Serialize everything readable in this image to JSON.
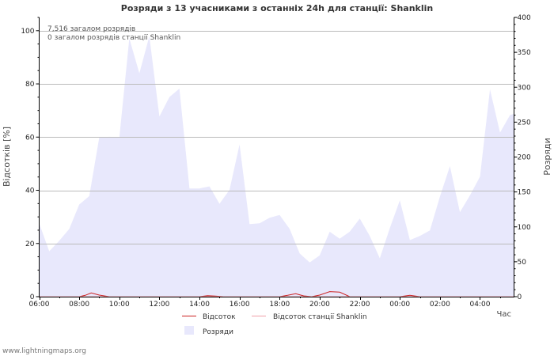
{
  "chart_data": {
    "type": "area",
    "title": "Розряди з 13 учасниками з останніх 24h для станції: Shanklin",
    "info_lines": [
      "7,516 загалом розрядів",
      "0 загалом розрядів станції Shanklin"
    ],
    "xlabel": "Час",
    "ylabel_left": "Відсотків   [%]",
    "ylabel_right": "Розряди",
    "x_ticks": [
      "06:00",
      "08:00",
      "10:00",
      "12:00",
      "14:00",
      "16:00",
      "18:00",
      "20:00",
      "22:00",
      "00:00",
      "02:00",
      "04:00"
    ],
    "x_range_hours": [
      0,
      23.7
    ],
    "ylim_left": [
      0,
      105
    ],
    "yticks_left": [
      0,
      20,
      40,
      60,
      80,
      100
    ],
    "ylim_right": [
      0,
      400
    ],
    "yticks_right": [
      0,
      50,
      100,
      150,
      200,
      250,
      300,
      350,
      400
    ],
    "legend": [
      "Відсоток",
      "Відсоток станції Shanklin",
      "Розряди"
    ],
    "colors": {
      "strikes_fill": "#e8e8fc",
      "percent_line": "#cc2222",
      "station_line": "#f0a0a8",
      "grid": "#bbbbbb",
      "axis": "#000000"
    },
    "series": [
      {
        "name": "Розряди",
        "axis": "right",
        "x": [
          0,
          0.5,
          1,
          1.5,
          2,
          2.5,
          3,
          3.5,
          4,
          4.5,
          5,
          5.5,
          6,
          6.5,
          7,
          7.5,
          8,
          8.5,
          9,
          9.5,
          10,
          10.5,
          11,
          11.5,
          12,
          12.5,
          13,
          13.5,
          14,
          14.5,
          15,
          15.5,
          16,
          16.5,
          17,
          17.5,
          18,
          18.5,
          19,
          19.5,
          20,
          20.5,
          21,
          21.5,
          22,
          22.5,
          23,
          23.5,
          23.7
        ],
        "values": [
          105,
          65,
          80,
          97,
          132,
          144,
          228,
          229,
          228,
          370,
          320,
          373,
          258,
          286,
          298,
          155,
          155,
          158,
          133,
          153,
          218,
          104,
          105,
          113,
          117,
          97,
          62,
          49,
          59,
          93,
          83,
          93,
          112,
          87,
          55,
          98,
          138,
          81,
          87,
          95,
          143,
          187,
          121,
          145,
          172,
          297,
          235,
          260,
          262
        ]
      },
      {
        "name": "Відсоток",
        "axis": "left",
        "x": [
          0,
          2,
          2.3,
          2.6,
          3,
          3.5,
          8,
          8.4,
          8.8,
          9.2,
          12,
          12.4,
          12.8,
          13.2,
          13.6,
          14,
          14.5,
          15,
          15.5,
          18,
          18.5,
          19,
          23
        ],
        "values": [
          0,
          0,
          0.5,
          1.4,
          0.6,
          0,
          0,
          0.4,
          0.2,
          0,
          0,
          0.5,
          1.1,
          0.3,
          0,
          0.6,
          1.9,
          1.7,
          0,
          0,
          0.5,
          0,
          0
        ]
      },
      {
        "name": "Відсоток станції Shanklin",
        "axis": "left",
        "x": [
          0,
          23.7
        ],
        "values": [
          0,
          0
        ]
      }
    ]
  },
  "footer": "www.lightningmaps.org"
}
